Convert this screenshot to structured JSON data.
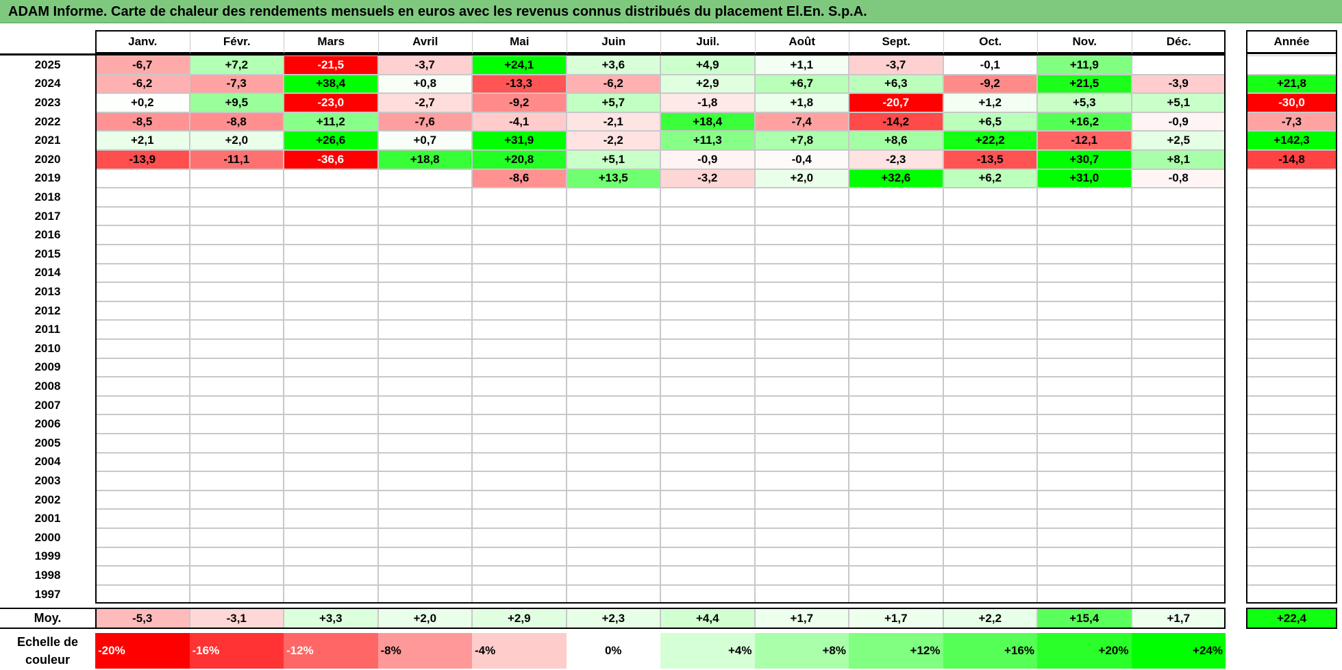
{
  "title": "ADAM Informe. Carte de chaleur des rendements mensuels en euros avec les revenus connus distribués du placement El.En. S.p.A.",
  "chart_data": {
    "type": "heatmap",
    "title": "ADAM Informe. Carte de chaleur des rendements mensuels en euros avec les revenus connus distribués du placement El.En. S.p.A.",
    "columns": [
      "Janv.",
      "Févr.",
      "Mars",
      "Avril",
      "Mai",
      "Juin",
      "Juil.",
      "Août",
      "Sept.",
      "Oct.",
      "Nov.",
      "Déc."
    ],
    "year_header": "Année",
    "rows": [
      {
        "year": "2025",
        "values": [
          "-6,7",
          "+7,2",
          "-21,5",
          "-3,7",
          "+24,1",
          "+3,6",
          "+4,9",
          "+1,1",
          "-3,7",
          "-0,1",
          "+11,9",
          ""
        ],
        "annual": ""
      },
      {
        "year": "2024",
        "values": [
          "-6,2",
          "-7,3",
          "+38,4",
          "+0,8",
          "-13,3",
          "-6,2",
          "+2,9",
          "+6,7",
          "+6,3",
          "-9,2",
          "+21,5",
          "-3,9"
        ],
        "annual": "+21,8"
      },
      {
        "year": "2023",
        "values": [
          "+0,2",
          "+9,5",
          "-23,0",
          "-2,7",
          "-9,2",
          "+5,7",
          "-1,8",
          "+1,8",
          "-20,7",
          "+1,2",
          "+5,3",
          "+5,1"
        ],
        "annual": "-30,0"
      },
      {
        "year": "2022",
        "values": [
          "-8,5",
          "-8,8",
          "+11,2",
          "-7,6",
          "-4,1",
          "-2,1",
          "+18,4",
          "-7,4",
          "-14,2",
          "+6,5",
          "+16,2",
          "-0,9"
        ],
        "annual": "-7,3"
      },
      {
        "year": "2021",
        "values": [
          "+2,1",
          "+2,0",
          "+26,6",
          "+0,7",
          "+31,9",
          "-2,2",
          "+11,3",
          "+7,8",
          "+8,6",
          "+22,2",
          "-12,1",
          "+2,5"
        ],
        "annual": "+142,3"
      },
      {
        "year": "2020",
        "values": [
          "-13,9",
          "-11,1",
          "-36,6",
          "+18,8",
          "+20,8",
          "+5,1",
          "-0,9",
          "-0,4",
          "-2,3",
          "-13,5",
          "+30,7",
          "+8,1"
        ],
        "annual": "-14,8"
      },
      {
        "year": "2019",
        "values": [
          "",
          "",
          "",
          "",
          "-8,6",
          "+13,5",
          "-3,2",
          "+2,0",
          "+32,6",
          "+6,2",
          "+31,0",
          "-0,8"
        ],
        "annual": ""
      },
      {
        "year": "2018",
        "values": [
          "",
          "",
          "",
          "",
          "",
          "",
          "",
          "",
          "",
          "",
          "",
          ""
        ],
        "annual": ""
      },
      {
        "year": "2017",
        "values": [
          "",
          "",
          "",
          "",
          "",
          "",
          "",
          "",
          "",
          "",
          "",
          ""
        ],
        "annual": ""
      },
      {
        "year": "2016",
        "values": [
          "",
          "",
          "",
          "",
          "",
          "",
          "",
          "",
          "",
          "",
          "",
          ""
        ],
        "annual": ""
      },
      {
        "year": "2015",
        "values": [
          "",
          "",
          "",
          "",
          "",
          "",
          "",
          "",
          "",
          "",
          "",
          ""
        ],
        "annual": ""
      },
      {
        "year": "2014",
        "values": [
          "",
          "",
          "",
          "",
          "",
          "",
          "",
          "",
          "",
          "",
          "",
          ""
        ],
        "annual": ""
      },
      {
        "year": "2013",
        "values": [
          "",
          "",
          "",
          "",
          "",
          "",
          "",
          "",
          "",
          "",
          "",
          ""
        ],
        "annual": ""
      },
      {
        "year": "2012",
        "values": [
          "",
          "",
          "",
          "",
          "",
          "",
          "",
          "",
          "",
          "",
          "",
          ""
        ],
        "annual": ""
      },
      {
        "year": "2011",
        "values": [
          "",
          "",
          "",
          "",
          "",
          "",
          "",
          "",
          "",
          "",
          "",
          ""
        ],
        "annual": ""
      },
      {
        "year": "2010",
        "values": [
          "",
          "",
          "",
          "",
          "",
          "",
          "",
          "",
          "",
          "",
          "",
          ""
        ],
        "annual": ""
      },
      {
        "year": "2009",
        "values": [
          "",
          "",
          "",
          "",
          "",
          "",
          "",
          "",
          "",
          "",
          "",
          ""
        ],
        "annual": ""
      },
      {
        "year": "2008",
        "values": [
          "",
          "",
          "",
          "",
          "",
          "",
          "",
          "",
          "",
          "",
          "",
          ""
        ],
        "annual": ""
      },
      {
        "year": "2007",
        "values": [
          "",
          "",
          "",
          "",
          "",
          "",
          "",
          "",
          "",
          "",
          "",
          ""
        ],
        "annual": ""
      },
      {
        "year": "2006",
        "values": [
          "",
          "",
          "",
          "",
          "",
          "",
          "",
          "",
          "",
          "",
          "",
          ""
        ],
        "annual": ""
      },
      {
        "year": "2005",
        "values": [
          "",
          "",
          "",
          "",
          "",
          "",
          "",
          "",
          "",
          "",
          "",
          ""
        ],
        "annual": ""
      },
      {
        "year": "2004",
        "values": [
          "",
          "",
          "",
          "",
          "",
          "",
          "",
          "",
          "",
          "",
          "",
          ""
        ],
        "annual": ""
      },
      {
        "year": "2003",
        "values": [
          "",
          "",
          "",
          "",
          "",
          "",
          "",
          "",
          "",
          "",
          "",
          ""
        ],
        "annual": ""
      },
      {
        "year": "2002",
        "values": [
          "",
          "",
          "",
          "",
          "",
          "",
          "",
          "",
          "",
          "",
          "",
          ""
        ],
        "annual": ""
      },
      {
        "year": "2001",
        "values": [
          "",
          "",
          "",
          "",
          "",
          "",
          "",
          "",
          "",
          "",
          "",
          ""
        ],
        "annual": ""
      },
      {
        "year": "2000",
        "values": [
          "",
          "",
          "",
          "",
          "",
          "",
          "",
          "",
          "",
          "",
          "",
          ""
        ],
        "annual": ""
      },
      {
        "year": "1999",
        "values": [
          "",
          "",
          "",
          "",
          "",
          "",
          "",
          "",
          "",
          "",
          "",
          ""
        ],
        "annual": ""
      },
      {
        "year": "1998",
        "values": [
          "",
          "",
          "",
          "",
          "",
          "",
          "",
          "",
          "",
          "",
          "",
          ""
        ],
        "annual": ""
      },
      {
        "year": "1997",
        "values": [
          "",
          "",
          "",
          "",
          "",
          "",
          "",
          "",
          "",
          "",
          "",
          ""
        ],
        "annual": ""
      }
    ],
    "average": {
      "label": "Moy.",
      "values": [
        "-5,3",
        "-3,1",
        "+3,3",
        "+2,0",
        "+2,9",
        "+2,3",
        "+4,4",
        "+1,7",
        "+1,7",
        "+2,2",
        "+15,4",
        "+1,7"
      ],
      "annual": "+22,4"
    },
    "color_scale": {
      "label": "Echelle de couleur",
      "steps": [
        "-20%",
        "-16%",
        "-12%",
        "-8%",
        "-4%",
        "0%",
        "+4%",
        "+8%",
        "+12%",
        "+16%",
        "+20%",
        "+24%"
      ],
      "step_values": [
        -20,
        -16,
        -12,
        -8,
        -4,
        0,
        4,
        8,
        12,
        16,
        20,
        24
      ],
      "negative_color": "#ff0000",
      "positive_color": "#00ff00",
      "neutral_color": "#ffffff"
    }
  }
}
